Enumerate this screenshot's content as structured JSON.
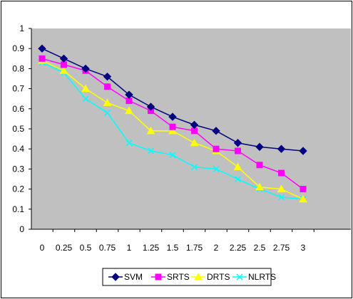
{
  "chart_data": {
    "type": "line",
    "title": "",
    "xlabel": "",
    "ylabel": "",
    "x": [
      "0",
      "0.25",
      "0.5",
      "0.75",
      "1",
      "1.25",
      "1.5",
      "1.75",
      "2",
      "2.25",
      "2.5",
      "2.75",
      "3"
    ],
    "ylim": [
      0,
      1
    ],
    "yticks": [
      "0",
      "0.1",
      "0.2",
      "0.3",
      "0.4",
      "0.5",
      "0.6",
      "0.7",
      "0.8",
      "0.9",
      "1"
    ],
    "grid": false,
    "plot_background": "#C0C0C0",
    "legend_position": "bottom",
    "series": [
      {
        "name": "SVM",
        "color": "#000080",
        "marker": "diamond",
        "values": [
          0.9,
          0.85,
          0.8,
          0.76,
          0.67,
          0.61,
          0.56,
          0.52,
          0.49,
          0.43,
          0.41,
          0.4,
          0.39
        ]
      },
      {
        "name": "SRTS",
        "color": "#FF00FF",
        "marker": "square",
        "values": [
          0.85,
          0.82,
          0.79,
          0.71,
          0.64,
          0.59,
          0.51,
          0.49,
          0.4,
          0.39,
          0.32,
          0.28,
          0.2
        ]
      },
      {
        "name": "DRTS",
        "color": "#FFFF00",
        "marker": "triangle",
        "values": [
          0.84,
          0.79,
          0.7,
          0.63,
          0.59,
          0.49,
          0.49,
          0.43,
          0.39,
          0.31,
          0.21,
          0.2,
          0.15
        ]
      },
      {
        "name": "NLRTS",
        "color": "#00FFFF",
        "marker": "x",
        "values": [
          0.83,
          0.78,
          0.65,
          0.58,
          0.43,
          0.39,
          0.37,
          0.31,
          0.3,
          0.25,
          0.2,
          0.16,
          0.15
        ]
      }
    ]
  }
}
